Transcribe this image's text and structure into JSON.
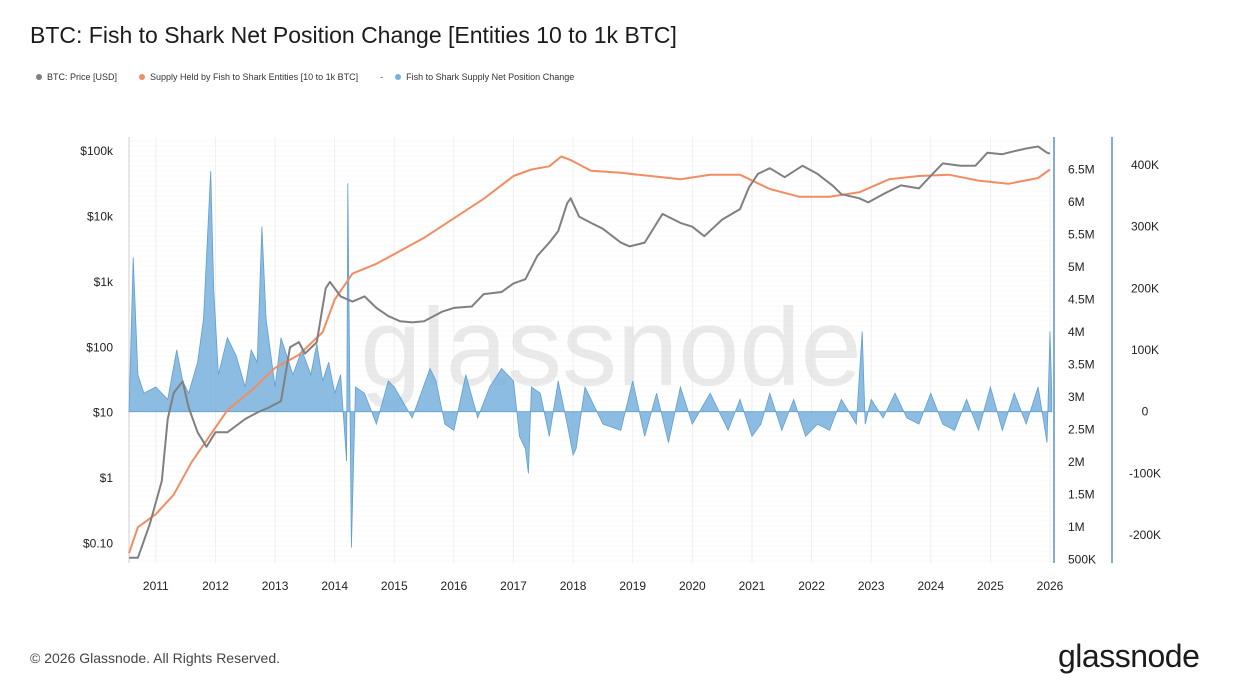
{
  "chart_data": {
    "type": "line",
    "title": "BTC: Fish to Shark Net Position Change [Entities 10 to 1k BTC]",
    "legend": {
      "placement": "top-left",
      "items": [
        {
          "label": "BTC: Price [USD]",
          "color": "#808080"
        },
        {
          "label": "Supply Held by Fish to Shark Entities [10 to 1k BTC]",
          "color": "#f28d63"
        },
        {
          "label": "-",
          "color": ""
        },
        {
          "label": "Fish to Shark Supply Net Position Change",
          "color": "#78b0dc"
        }
      ]
    },
    "x_ticks": [
      "2011",
      "2012",
      "2013",
      "2014",
      "2015",
      "2016",
      "2017",
      "2018",
      "2019",
      "2020",
      "2021",
      "2022",
      "2023",
      "2024",
      "2025",
      "2026"
    ],
    "xlim": [
      2010.55,
      2026.05
    ],
    "left_axis": {
      "scale": "log",
      "ticks": [
        "$0.10",
        "$1",
        "$10",
        "$100",
        "$1k",
        "$10k",
        "$100k"
      ],
      "tick_values": [
        0.1,
        1,
        10,
        100,
        1000,
        10000,
        100000
      ],
      "ylim": [
        0.05,
        165000
      ]
    },
    "mid_axis": {
      "ticks": [
        "500K",
        "1M",
        "1.5M",
        "2M",
        "2.5M",
        "3M",
        "3.5M",
        "4M",
        "4.5M",
        "5M",
        "5.5M",
        "6M",
        "6.5M"
      ],
      "tick_values": [
        500000,
        1000000,
        1500000,
        2000000,
        2500000,
        3000000,
        3500000,
        4000000,
        4500000,
        5000000,
        5500000,
        6000000,
        6500000
      ],
      "ylim": [
        450000,
        7000000
      ]
    },
    "right_axis": {
      "ticks": [
        "-200K",
        "-100K",
        "0",
        "100K",
        "200K",
        "300K",
        "400K"
      ],
      "tick_values": [
        -200000,
        -100000,
        0,
        100000,
        200000,
        300000,
        400000
      ],
      "ylim": [
        -245000,
        445000
      ]
    },
    "grid": true,
    "series": [
      {
        "name": "BTC: Price [USD]",
        "axis": "left",
        "color": "#808080",
        "x": [
          2010.55,
          2010.7,
          2010.9,
          2011.1,
          2011.2,
          2011.3,
          2011.45,
          2011.55,
          2011.7,
          2011.85,
          2012.0,
          2012.2,
          2012.5,
          2012.7,
          2012.9,
          2013.1,
          2013.25,
          2013.4,
          2013.5,
          2013.7,
          2013.85,
          2013.92,
          2014.0,
          2014.1,
          2014.3,
          2014.5,
          2014.7,
          2014.9,
          2015.1,
          2015.3,
          2015.5,
          2015.8,
          2016.0,
          2016.3,
          2016.5,
          2016.8,
          2017.0,
          2017.2,
          2017.4,
          2017.6,
          2017.75,
          2017.9,
          2017.96,
          2018.1,
          2018.3,
          2018.5,
          2018.8,
          2018.95,
          2019.2,
          2019.5,
          2019.8,
          2020.0,
          2020.2,
          2020.5,
          2020.8,
          2020.95,
          2021.1,
          2021.3,
          2021.55,
          2021.85,
          2022.1,
          2022.35,
          2022.5,
          2022.8,
          2022.95,
          2023.2,
          2023.5,
          2023.8,
          2024.0,
          2024.2,
          2024.5,
          2024.75,
          2024.95,
          2025.2,
          2025.4,
          2025.6,
          2025.8,
          2025.95,
          2026.0
        ],
        "y": [
          0.06,
          0.06,
          0.2,
          0.9,
          8,
          20,
          30,
          12,
          5,
          3,
          5,
          5,
          8,
          10,
          12,
          15,
          100,
          120,
          80,
          120,
          800,
          1000,
          800,
          600,
          500,
          600,
          400,
          300,
          250,
          240,
          250,
          350,
          400,
          420,
          650,
          700,
          950,
          1100,
          2500,
          4000,
          6000,
          16000,
          19000,
          10000,
          8000,
          6500,
          4000,
          3500,
          4000,
          11000,
          8000,
          7000,
          5000,
          9000,
          13000,
          28000,
          45000,
          55000,
          40000,
          60000,
          45000,
          30000,
          22000,
          19000,
          16500,
          22000,
          30000,
          27000,
          42000,
          65000,
          60000,
          60000,
          95000,
          90000,
          100000,
          110000,
          118000,
          95000,
          92000
        ]
      },
      {
        "name": "Supply Held by Fish to Shark Entities [10 to 1k BTC]",
        "axis": "mid",
        "color": "#f28d63",
        "x": [
          2010.55,
          2010.7,
          2011.0,
          2011.3,
          2011.6,
          2011.9,
          2012.2,
          2012.6,
          2013.0,
          2013.4,
          2013.8,
          2014.0,
          2014.3,
          2014.7,
          2015.0,
          2015.5,
          2016.0,
          2016.5,
          2017.0,
          2017.3,
          2017.6,
          2017.8,
          2017.95,
          2018.3,
          2018.8,
          2019.3,
          2019.8,
          2020.3,
          2020.8,
          2021.3,
          2021.8,
          2022.3,
          2022.8,
          2023.3,
          2023.8,
          2024.3,
          2024.8,
          2025.3,
          2025.8,
          2026.0
        ],
        "y": [
          600000,
          1000000,
          1200000,
          1500000,
          2000000,
          2400000,
          2800000,
          3100000,
          3450000,
          3650000,
          4000000,
          4500000,
          4900000,
          5050000,
          5200000,
          5450000,
          5750000,
          6050000,
          6400000,
          6500000,
          6550000,
          6700000,
          6650000,
          6480000,
          6450000,
          6400000,
          6350000,
          6420000,
          6420000,
          6200000,
          6080000,
          6080000,
          6150000,
          6350000,
          6400000,
          6420000,
          6330000,
          6280000,
          6370000,
          6500000
        ]
      },
      {
        "name": "Fish to Shark Supply Net Position Change",
        "axis": "right",
        "color": "#78b0dc",
        "type": "area",
        "x": [
          2010.55,
          2010.62,
          2010.7,
          2010.8,
          2011.0,
          2011.2,
          2011.35,
          2011.45,
          2011.55,
          2011.7,
          2011.8,
          2011.92,
          2011.97,
          2012.05,
          2012.2,
          2012.35,
          2012.5,
          2012.6,
          2012.7,
          2012.78,
          2012.85,
          2013.0,
          2013.1,
          2013.2,
          2013.3,
          2013.45,
          2013.6,
          2013.7,
          2013.8,
          2013.9,
          2014.0,
          2014.1,
          2014.2,
          2014.22,
          2014.28,
          2014.35,
          2014.5,
          2014.7,
          2014.9,
          2015.0,
          2015.3,
          2015.6,
          2015.7,
          2015.85,
          2016.0,
          2016.2,
          2016.4,
          2016.6,
          2016.8,
          2017.0,
          2017.1,
          2017.2,
          2017.25,
          2017.3,
          2017.45,
          2017.6,
          2017.75,
          2017.9,
          2018.0,
          2018.05,
          2018.2,
          2018.5,
          2018.8,
          2019.0,
          2019.2,
          2019.4,
          2019.6,
          2019.8,
          2020.0,
          2020.3,
          2020.6,
          2020.8,
          2021.0,
          2021.15,
          2021.3,
          2021.5,
          2021.7,
          2021.9,
          2022.1,
          2022.3,
          2022.5,
          2022.75,
          2022.85,
          2022.9,
          2023.0,
          2023.2,
          2023.4,
          2023.6,
          2023.8,
          2024.0,
          2024.2,
          2024.4,
          2024.6,
          2024.8,
          2025.0,
          2025.2,
          2025.4,
          2025.6,
          2025.8,
          2025.9,
          2025.95,
          2026.0,
          2026.03
        ],
        "y": [
          0,
          250000,
          60000,
          30000,
          40000,
          20000,
          100000,
          50000,
          30000,
          80000,
          150000,
          390000,
          200000,
          60000,
          120000,
          90000,
          40000,
          100000,
          80000,
          300000,
          150000,
          40000,
          120000,
          90000,
          60000,
          100000,
          60000,
          110000,
          50000,
          80000,
          30000,
          60000,
          -80000,
          370000,
          -220000,
          40000,
          30000,
          -20000,
          50000,
          40000,
          -10000,
          70000,
          50000,
          -20000,
          -30000,
          60000,
          -10000,
          40000,
          70000,
          50000,
          -40000,
          -60000,
          -100000,
          40000,
          30000,
          -40000,
          50000,
          -20000,
          -70000,
          -60000,
          40000,
          -20000,
          -30000,
          50000,
          -40000,
          30000,
          -50000,
          40000,
          -20000,
          30000,
          -30000,
          20000,
          -40000,
          -20000,
          30000,
          -30000,
          20000,
          -40000,
          -20000,
          -30000,
          20000,
          -20000,
          130000,
          -20000,
          20000,
          -10000,
          30000,
          -10000,
          -20000,
          30000,
          -20000,
          -30000,
          20000,
          -30000,
          40000,
          -30000,
          30000,
          -20000,
          40000,
          -20000,
          -50000,
          130000,
          30000
        ]
      }
    ],
    "watermark": "glassnode"
  },
  "footer": {
    "copyright": "© 2026 Glassnode. All Rights Reserved.",
    "logo": "glassnode"
  }
}
